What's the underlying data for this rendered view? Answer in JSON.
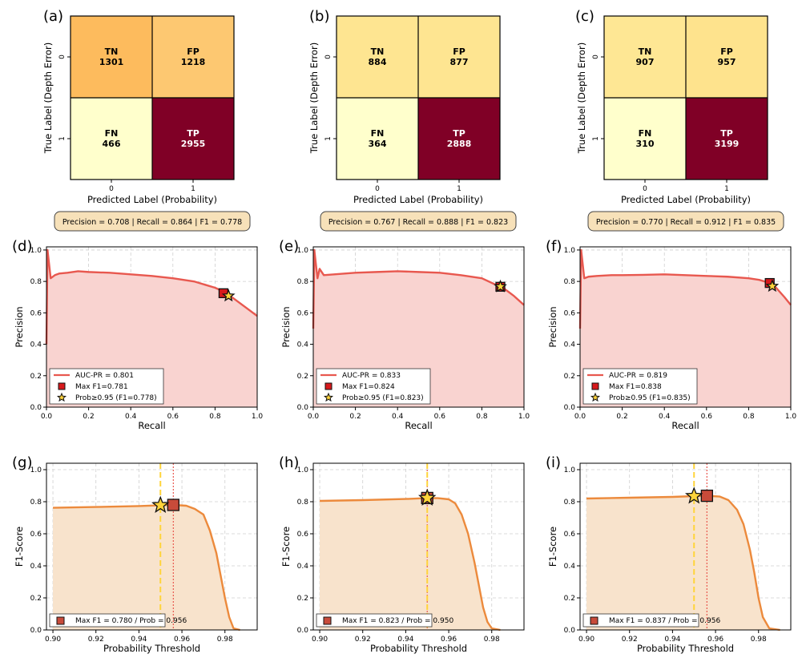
{
  "chart_data": [
    {
      "type": "heatmap",
      "panel": "(a)",
      "xlabel": "Predicted Label (Probability)",
      "ylabel": "True Label (Depth Error)",
      "x_ticks": [
        "0",
        "1"
      ],
      "y_ticks": [
        "0",
        "1"
      ],
      "cells": [
        {
          "label": "TN",
          "value": 1301,
          "color": "#fdbb5d"
        },
        {
          "label": "FP",
          "value": 1218,
          "color": "#fdc871"
        },
        {
          "label": "FN",
          "value": 466,
          "color": "#ffffcc"
        },
        {
          "label": "TP",
          "value": 2955,
          "color": "#800026"
        }
      ],
      "metrics_text": "Precision = 0.708  |  Recall = 0.864  |  F1 = 0.778"
    },
    {
      "type": "heatmap",
      "panel": "(b)",
      "xlabel": "Predicted Label (Probability)",
      "ylabel": "True Label (Depth Error)",
      "x_ticks": [
        "0",
        "1"
      ],
      "y_ticks": [
        "0",
        "1"
      ],
      "cells": [
        {
          "label": "TN",
          "value": 884,
          "color": "#fee591"
        },
        {
          "label": "FP",
          "value": 877,
          "color": "#fee591"
        },
        {
          "label": "FN",
          "value": 364,
          "color": "#ffffcc"
        },
        {
          "label": "TP",
          "value": 2888,
          "color": "#800026"
        }
      ],
      "metrics_text": "Precision = 0.767  |  Recall = 0.888  |  F1 = 0.823"
    },
    {
      "type": "heatmap",
      "panel": "(c)",
      "xlabel": "Predicted Label (Probability)",
      "ylabel": "True Label (Depth Error)",
      "x_ticks": [
        "0",
        "1"
      ],
      "y_ticks": [
        "0",
        "1"
      ],
      "cells": [
        {
          "label": "TN",
          "value": 907,
          "color": "#fee794"
        },
        {
          "label": "FP",
          "value": 957,
          "color": "#fee38d"
        },
        {
          "label": "FN",
          "value": 310,
          "color": "#ffffcc"
        },
        {
          "label": "TP",
          "value": 3199,
          "color": "#800026"
        }
      ],
      "metrics_text": "Precision = 0.770  |  Recall = 0.912  |  F1 = 0.835"
    },
    {
      "type": "area",
      "panel": "(d)",
      "xlabel": "Recall",
      "ylabel": "Precision",
      "xlim": [
        0,
        1
      ],
      "ylim": [
        0,
        1.02
      ],
      "x_ticks": [
        "0.0",
        "0.2",
        "0.4",
        "0.6",
        "0.8",
        "1.0"
      ],
      "y_ticks": [
        "0.0",
        "0.2",
        "0.4",
        "0.6",
        "0.8",
        "1.0"
      ],
      "grid": true,
      "legend": "lower-left",
      "color": "#e8584f",
      "fill": "#f9d3d0",
      "x": [
        0,
        0.005,
        0.02,
        0.04,
        0.06,
        0.1,
        0.15,
        0.2,
        0.3,
        0.4,
        0.5,
        0.6,
        0.7,
        0.8,
        0.85,
        0.87,
        0.9,
        0.95,
        1.0
      ],
      "y": [
        0.4,
        1.0,
        0.82,
        0.84,
        0.85,
        0.855,
        0.865,
        0.86,
        0.855,
        0.845,
        0.835,
        0.82,
        0.8,
        0.76,
        0.73,
        0.71,
        0.68,
        0.63,
        0.58
      ],
      "max_point": {
        "x": 0.84,
        "y": 0.725
      },
      "prob_point": {
        "x": 0.864,
        "y": 0.708
      },
      "legend_entries": [
        "AUC-PR = 0.801",
        "Max F1=0.781",
        "Prob≥0.95 (F1=0.778)"
      ]
    },
    {
      "type": "area",
      "panel": "(e)",
      "xlabel": "Recall",
      "ylabel": "Precision",
      "xlim": [
        0,
        1
      ],
      "ylim": [
        0,
        1.02
      ],
      "x_ticks": [
        "0.0",
        "0.2",
        "0.4",
        "0.6",
        "0.8",
        "1.0"
      ],
      "y_ticks": [
        "0.0",
        "0.2",
        "0.4",
        "0.6",
        "0.8",
        "1.0"
      ],
      "grid": true,
      "legend": "lower-left",
      "color": "#e8584f",
      "fill": "#f9d3d0",
      "x": [
        0,
        0.005,
        0.02,
        0.03,
        0.05,
        0.1,
        0.2,
        0.3,
        0.4,
        0.5,
        0.6,
        0.7,
        0.8,
        0.88,
        0.9,
        0.95,
        1.0
      ],
      "y": [
        0.5,
        1.0,
        0.82,
        0.88,
        0.84,
        0.845,
        0.855,
        0.86,
        0.865,
        0.86,
        0.855,
        0.84,
        0.82,
        0.77,
        0.76,
        0.71,
        0.65
      ],
      "max_point": {
        "x": 0.888,
        "y": 0.766
      },
      "prob_point": {
        "x": 0.888,
        "y": 0.767
      },
      "legend_entries": [
        "AUC-PR = 0.833",
        "Max F1=0.824",
        "Prob≥0.95 (F1=0.823)"
      ]
    },
    {
      "type": "area",
      "panel": "(f)",
      "xlabel": "Recall",
      "ylabel": "Precision",
      "xlim": [
        0,
        1
      ],
      "ylim": [
        0,
        1.02
      ],
      "x_ticks": [
        "0.0",
        "0.2",
        "0.4",
        "0.6",
        "0.8",
        "1.0"
      ],
      "y_ticks": [
        "0.0",
        "0.2",
        "0.4",
        "0.6",
        "0.8",
        "1.0"
      ],
      "grid": true,
      "legend": "lower-left",
      "color": "#e8584f",
      "fill": "#f9d3d0",
      "x": [
        0,
        0.005,
        0.02,
        0.04,
        0.08,
        0.15,
        0.2,
        0.3,
        0.4,
        0.5,
        0.6,
        0.7,
        0.8,
        0.85,
        0.9,
        0.93,
        0.97,
        1.0
      ],
      "y": [
        0.5,
        1.0,
        0.82,
        0.83,
        0.835,
        0.84,
        0.84,
        0.842,
        0.845,
        0.84,
        0.835,
        0.83,
        0.82,
        0.81,
        0.79,
        0.76,
        0.7,
        0.65
      ],
      "max_point": {
        "x": 0.9,
        "y": 0.79
      },
      "prob_point": {
        "x": 0.912,
        "y": 0.77
      },
      "legend_entries": [
        "AUC-PR = 0.819",
        "Max F1=0.838",
        "Prob≥0.95 (F1=0.835)"
      ]
    },
    {
      "type": "area",
      "panel": "(g)",
      "xlabel": "Probability Threshold",
      "ylabel": "F1-Score",
      "xlim": [
        0.897,
        0.995
      ],
      "ylim": [
        0,
        1.04
      ],
      "x_ticks": [
        "0.90",
        "0.92",
        "0.94",
        "0.96",
        "0.98"
      ],
      "y_ticks": [
        "0.0",
        "0.2",
        "0.4",
        "0.6",
        "0.8",
        "1.0"
      ],
      "grid": true,
      "legend": "lower-left",
      "color": "#ec8a3c",
      "fill": "#f8e3cc",
      "x": [
        0.9,
        0.92,
        0.94,
        0.95,
        0.956,
        0.962,
        0.966,
        0.97,
        0.973,
        0.976,
        0.978,
        0.98,
        0.982,
        0.984,
        0.987
      ],
      "y": [
        0.762,
        0.767,
        0.773,
        0.778,
        0.78,
        0.775,
        0.755,
        0.72,
        0.62,
        0.48,
        0.34,
        0.2,
        0.08,
        0.01,
        0.0
      ],
      "threshold_line": 0.95,
      "max_line": 0.956,
      "max_point": {
        "x": 0.956,
        "y": 0.78
      },
      "prob_point": {
        "x": 0.95,
        "y": 0.778
      },
      "legend_entries": [
        "Max F1 = 0.780 / Prob = 0.956"
      ]
    },
    {
      "type": "area",
      "panel": "(h)",
      "xlabel": "Probability Threshold",
      "ylabel": "F1-Score",
      "xlim": [
        0.897,
        0.995
      ],
      "ylim": [
        0,
        1.04
      ],
      "x_ticks": [
        "0.90",
        "0.92",
        "0.94",
        "0.96",
        "0.98"
      ],
      "y_ticks": [
        "0.0",
        "0.2",
        "0.4",
        "0.6",
        "0.8",
        "1.0"
      ],
      "grid": true,
      "legend": "lower-left",
      "color": "#ec8a3c",
      "fill": "#f8e3cc",
      "x": [
        0.9,
        0.92,
        0.94,
        0.95,
        0.955,
        0.96,
        0.963,
        0.966,
        0.969,
        0.972,
        0.974,
        0.976,
        0.978,
        0.98,
        0.984
      ],
      "y": [
        0.805,
        0.81,
        0.817,
        0.823,
        0.822,
        0.815,
        0.79,
        0.72,
        0.6,
        0.42,
        0.28,
        0.14,
        0.05,
        0.01,
        0.0
      ],
      "threshold_line": 0.95,
      "max_line": 0.95,
      "max_point": {
        "x": 0.95,
        "y": 0.823
      },
      "prob_point": {
        "x": 0.95,
        "y": 0.823
      },
      "legend_entries": [
        "Max F1 = 0.823 / Prob = 0.950"
      ]
    },
    {
      "type": "area",
      "panel": "(i)",
      "xlabel": "Probability Threshold",
      "ylabel": "F1-Score",
      "xlim": [
        0.897,
        0.995
      ],
      "ylim": [
        0,
        1.04
      ],
      "x_ticks": [
        "0.90",
        "0.92",
        "0.94",
        "0.96",
        "0.98"
      ],
      "y_ticks": [
        "0.0",
        "0.2",
        "0.4",
        "0.6",
        "0.8",
        "1.0"
      ],
      "grid": true,
      "legend": "lower-left",
      "color": "#ec8a3c",
      "fill": "#f8e3cc",
      "x": [
        0.9,
        0.92,
        0.94,
        0.95,
        0.956,
        0.962,
        0.966,
        0.97,
        0.973,
        0.976,
        0.978,
        0.98,
        0.982,
        0.985,
        0.99
      ],
      "y": [
        0.82,
        0.825,
        0.83,
        0.835,
        0.837,
        0.832,
        0.81,
        0.75,
        0.66,
        0.5,
        0.36,
        0.2,
        0.08,
        0.01,
        0.0
      ],
      "threshold_line": 0.95,
      "max_line": 0.956,
      "max_point": {
        "x": 0.956,
        "y": 0.837
      },
      "prob_point": {
        "x": 0.95,
        "y": 0.835
      },
      "legend_entries": [
        "Max F1 = 0.837 / Prob = 0.956"
      ]
    }
  ]
}
